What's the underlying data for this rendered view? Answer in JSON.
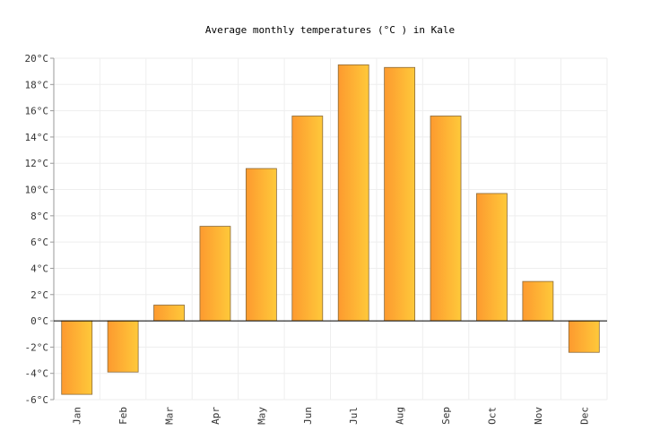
{
  "chart_data": {
    "type": "bar",
    "title": "Average monthly temperatures (°C ) in Kale",
    "categories": [
      "Jan",
      "Feb",
      "Mar",
      "Apr",
      "May",
      "Jun",
      "Jul",
      "Aug",
      "Sep",
      "Oct",
      "Nov",
      "Dec"
    ],
    "values": [
      -5.6,
      -3.9,
      1.2,
      7.2,
      11.6,
      15.6,
      19.5,
      19.3,
      15.6,
      9.7,
      3.0,
      -2.4
    ],
    "gradient": [
      "#fd9a2f",
      "#fec93a"
    ],
    "ylim": [
      -6,
      20
    ],
    "yticks": [
      {
        "value": -6,
        "label": "-6°C"
      },
      {
        "value": -4,
        "label": "-4°C"
      },
      {
        "value": -2,
        "label": "-2°C"
      },
      {
        "value": 0,
        "label": "0°C"
      },
      {
        "value": 2,
        "label": "2°C"
      },
      {
        "value": 4,
        "label": "4°C"
      },
      {
        "value": 6,
        "label": "6°C"
      },
      {
        "value": 8,
        "label": "8°C"
      },
      {
        "value": 10,
        "label": "10°C"
      },
      {
        "value": 12,
        "label": "12°C"
      },
      {
        "value": 14,
        "label": "14°C"
      },
      {
        "value": 16,
        "label": "16°C"
      },
      {
        "value": 18,
        "label": "18°C"
      },
      {
        "value": 20,
        "label": "20°C"
      }
    ],
    "grid": true
  }
}
